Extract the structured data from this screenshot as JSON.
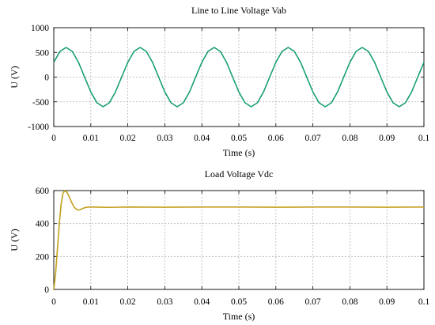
{
  "chart_data": [
    {
      "type": "line",
      "title": "Line to Line Voltage Vab",
      "xlabel": "Time (s)",
      "ylabel": "U (V)",
      "xlim": [
        0,
        0.1
      ],
      "ylim": [
        -1000,
        1000
      ],
      "xticks": [
        0,
        0.01,
        0.02,
        0.03,
        0.04,
        0.05,
        0.06,
        0.07,
        0.08,
        0.09,
        0.1
      ],
      "xtick_labels": [
        "0",
        "0.01",
        "0.02",
        "0.03",
        "0.04",
        "0.05",
        "0.06",
        "0.07",
        "0.08",
        "0.09",
        "0.1"
      ],
      "yticks": [
        -1000,
        -500,
        0,
        500,
        1000
      ],
      "ytick_labels": [
        "-1000",
        "-500",
        "0",
        "500",
        "1000"
      ],
      "grid": true,
      "color": "#169e6c",
      "series": [
        {
          "x": [
            0,
            0.00167,
            0.00333,
            0.005,
            0.00667,
            0.00833,
            0.01,
            0.01167,
            0.01333,
            0.015,
            0.01667,
            0.01833,
            0.02,
            0.02167,
            0.02333,
            0.025,
            0.02667,
            0.02833,
            0.03,
            0.03167,
            0.03333,
            0.035,
            0.03667,
            0.03833,
            0.04,
            0.04167,
            0.04333,
            0.045,
            0.04667,
            0.04833,
            0.05,
            0.05167,
            0.05333,
            0.055,
            0.05667,
            0.05833,
            0.06,
            0.06167,
            0.06333,
            0.065,
            0.06667,
            0.06833,
            0.07,
            0.07167,
            0.07333,
            0.075,
            0.07667,
            0.07833,
            0.08,
            0.08167,
            0.08333,
            0.085,
            0.08667,
            0.08833,
            0.09,
            0.09167,
            0.09333,
            0.095,
            0.09667,
            0.09833,
            0.1
          ],
          "y": [
            300,
            520,
            600,
            520,
            300,
            0,
            -300,
            -520,
            -600,
            -520,
            -300,
            0,
            300,
            520,
            600,
            520,
            300,
            0,
            -300,
            -520,
            -600,
            -520,
            -300,
            0,
            300,
            520,
            600,
            520,
            300,
            0,
            -300,
            -520,
            -600,
            -520,
            -300,
            0,
            300,
            520,
            600,
            520,
            300,
            0,
            -300,
            -520,
            -600,
            -520,
            -300,
            0,
            300,
            520,
            600,
            520,
            300,
            0,
            -300,
            -520,
            -600,
            -520,
            -300,
            0,
            300
          ]
        }
      ]
    },
    {
      "type": "line",
      "title": "Load Voltage Vdc",
      "xlabel": "Time (s)",
      "ylabel": "U (V)",
      "xlim": [
        0,
        0.1
      ],
      "ylim": [
        0,
        600
      ],
      "xticks": [
        0,
        0.01,
        0.02,
        0.03,
        0.04,
        0.05,
        0.06,
        0.07,
        0.08,
        0.09,
        0.1
      ],
      "xtick_labels": [
        "0",
        "0.01",
        "0.02",
        "0.03",
        "0.04",
        "0.05",
        "0.06",
        "0.07",
        "0.08",
        "0.09",
        "0.1"
      ],
      "yticks": [
        0,
        200,
        400,
        600
      ],
      "ytick_labels": [
        "0",
        "200",
        "400",
        "600"
      ],
      "grid": true,
      "color": "#c2a01c",
      "series": [
        {
          "x": [
            0,
            0.0005,
            0.001,
            0.0015,
            0.002,
            0.0025,
            0.003,
            0.0035,
            0.004,
            0.0045,
            0.005,
            0.0055,
            0.006,
            0.0065,
            0.007,
            0.0075,
            0.008,
            0.0085,
            0.009,
            0.0095,
            0.01,
            0.015,
            0.02,
            0.03,
            0.04,
            0.05,
            0.06,
            0.07,
            0.08,
            0.09,
            0.1
          ],
          "y": [
            0,
            100,
            250,
            400,
            520,
            585,
            598,
            592,
            570,
            545,
            520,
            500,
            488,
            482,
            483,
            488,
            493,
            497,
            499,
            500,
            500,
            498,
            500,
            499,
            500,
            500,
            499,
            500,
            500,
            499,
            500
          ]
        }
      ]
    }
  ]
}
